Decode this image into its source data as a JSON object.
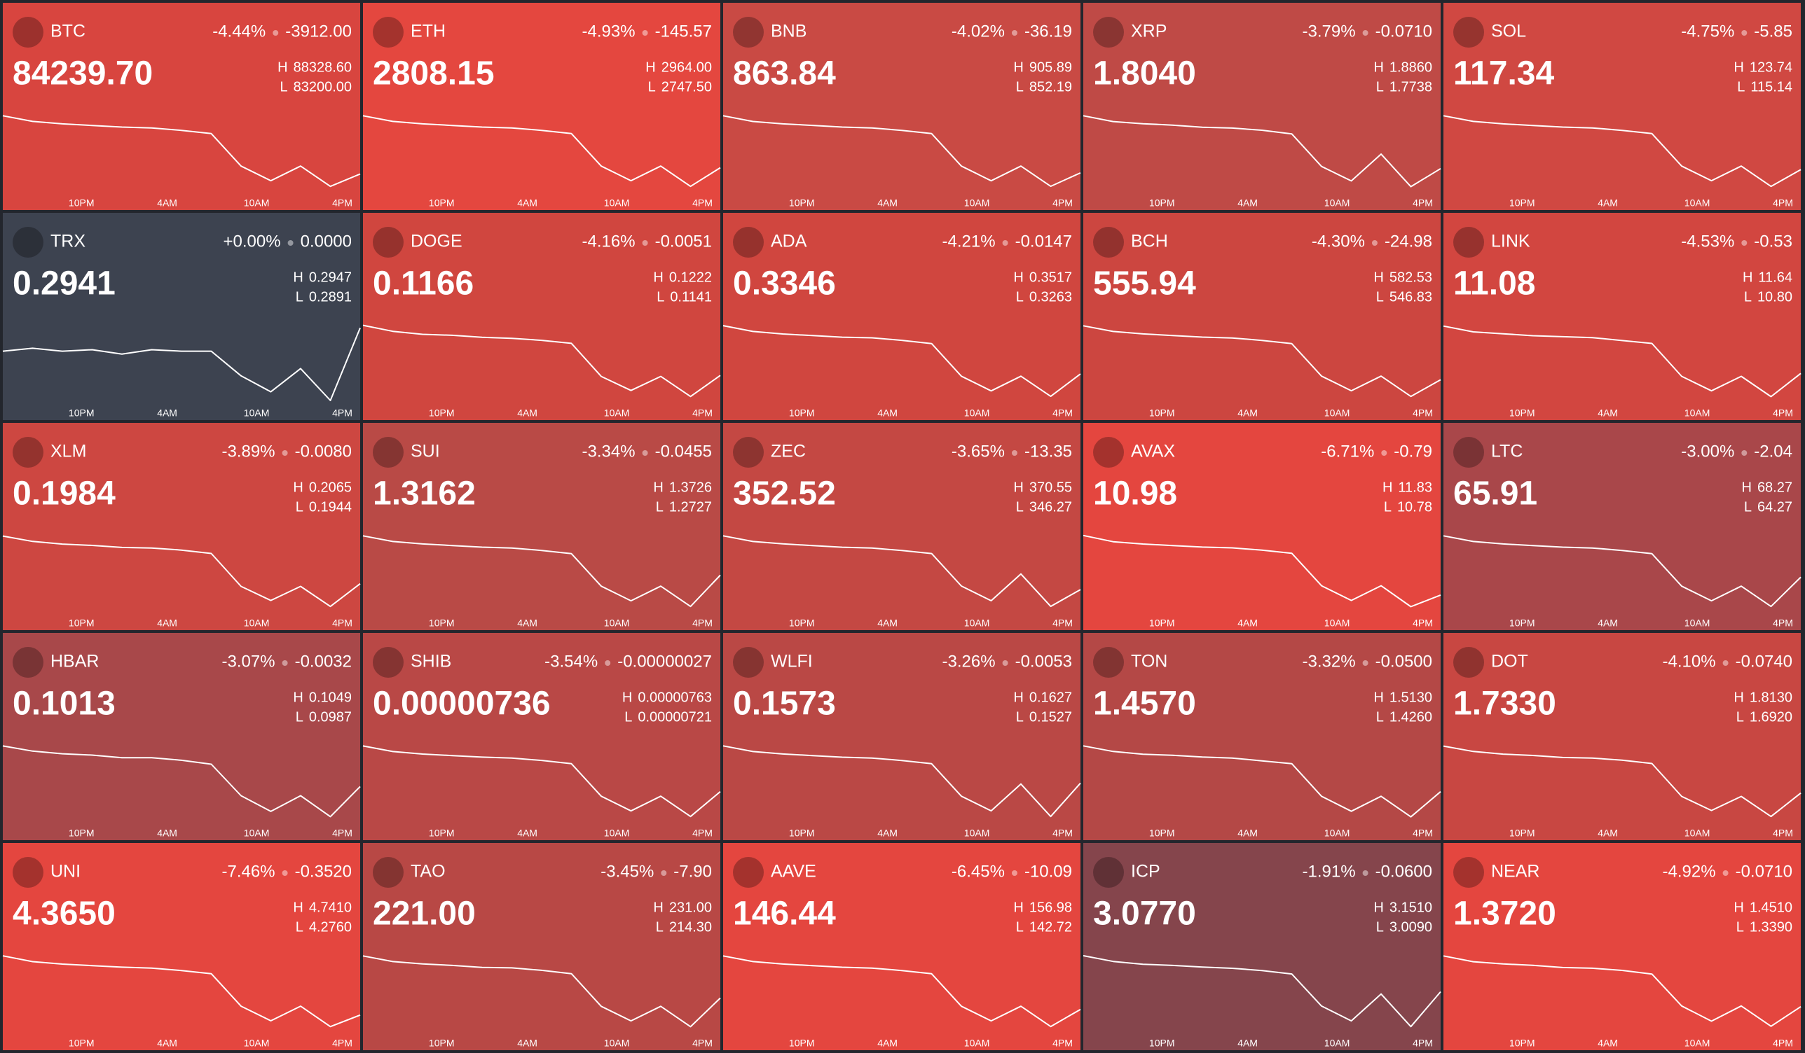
{
  "time_labels": [
    "10PM",
    "4AM",
    "10AM",
    "4PM"
  ],
  "high_prefix": "H",
  "low_prefix": "L",
  "tiles": [
    {
      "symbol": "BTC",
      "change_pct": "-4.44%",
      "change_abs": "-3912.00",
      "price": "84239.70",
      "high": "88328.60",
      "low": "83200.00",
      "color": "#d8453f",
      "sparkline": [
        87918,
        87559,
        87405,
        87303,
        87200,
        87149,
        86995,
        86790,
        84739,
        83815,
        84739,
        83456,
        84240
      ]
    },
    {
      "symbol": "ETH",
      "change_pct": "-4.93%",
      "change_abs": "-145.57",
      "price": "2808.15",
      "high": "2964.00",
      "low": "2747.50",
      "color": "#e4473f",
      "sparkline": [
        2946.7,
        2931.5,
        2925.0,
        2920.7,
        2916.4,
        2914.2,
        2907.7,
        2899.1,
        2812.5,
        2773.5,
        2812.5,
        2758.3,
        2808.2
      ]
    },
    {
      "symbol": "BNB",
      "change_pct": "-4.02%",
      "change_abs": "-36.19",
      "price": "863.84",
      "high": "905.89",
      "low": "852.19",
      "color": "#c94a44",
      "sparkline": [
        901.6,
        897.8,
        896.2,
        895.2,
        894.1,
        893.5,
        891.9,
        889.8,
        868.3,
        858.6,
        868.3,
        854.9,
        863.8
      ]
    },
    {
      "symbol": "XRP",
      "change_pct": "-3.79%",
      "change_abs": "-0.0710",
      "price": "1.8040",
      "high": "1.8860",
      "low": "1.7738",
      "color": "#bf4a46",
      "sparkline": [
        1.877,
        1.869,
        1.866,
        1.864,
        1.861,
        1.86,
        1.857,
        1.852,
        1.807,
        1.787,
        1.824,
        1.779,
        1.804
      ]
    },
    {
      "symbol": "SOL",
      "change_pct": "-4.75%",
      "change_abs": "-5.85",
      "price": "117.34",
      "high": "123.74",
      "low": "115.14",
      "color": "#d04842",
      "sparkline": [
        123.05,
        122.45,
        122.19,
        122.02,
        121.85,
        121.76,
        121.5,
        121.16,
        117.72,
        116.17,
        117.72,
        115.57,
        117.34
      ]
    },
    {
      "symbol": "TRX",
      "change_pct": "+0.00%",
      "change_abs": "0.0000",
      "price": "0.2941",
      "high": "0.2947",
      "low": "0.2891",
      "color": "#3d4350",
      "sparkline": [
        0.2925,
        0.2927,
        0.2925,
        0.2926,
        0.2923,
        0.2926,
        0.2925,
        0.2925,
        0.2908,
        0.2897,
        0.2913,
        0.2891,
        0.2941
      ]
    },
    {
      "symbol": "DOGE",
      "change_pct": "-4.16%",
      "change_abs": "-0.0051",
      "price": "0.1166",
      "high": "0.1222",
      "low": "0.1141",
      "color": "#d0463f",
      "sparkline": [
        0.1216,
        0.121,
        0.1207,
        0.1206,
        0.1204,
        0.1203,
        0.1201,
        0.1198,
        0.1165,
        0.1151,
        0.1165,
        0.1145,
        0.1166
      ]
    },
    {
      "symbol": "ADA",
      "change_pct": "-4.21%",
      "change_abs": "-0.0147",
      "price": "0.3346",
      "high": "0.3517",
      "low": "0.3263",
      "color": "#d0463f",
      "sparkline": [
        0.3497,
        0.3479,
        0.3471,
        0.3466,
        0.3461,
        0.3459,
        0.3451,
        0.3441,
        0.3339,
        0.3293,
        0.3339,
        0.3276,
        0.3346
      ]
    },
    {
      "symbol": "BCH",
      "change_pct": "-4.30%",
      "change_abs": "-24.98",
      "price": "555.94",
      "high": "582.53",
      "low": "546.83",
      "color": "#cc4640",
      "sparkline": [
        579.67,
        577.18,
        576.1,
        575.39,
        574.68,
        574.32,
        573.25,
        571.82,
        557.54,
        551.11,
        557.54,
        548.62,
        555.94
      ]
    },
    {
      "symbol": "LINK",
      "change_pct": "-4.53%",
      "change_abs": "-0.53",
      "price": "11.08",
      "high": "11.64",
      "low": "10.80",
      "color": "#d24640",
      "sparkline": [
        11.57,
        11.51,
        11.49,
        11.47,
        11.46,
        11.45,
        11.42,
        11.39,
        11.05,
        10.9,
        11.05,
        10.84,
        11.08
      ]
    },
    {
      "symbol": "XLM",
      "change_pct": "-3.89%",
      "change_abs": "-0.0080",
      "price": "0.1984",
      "high": "0.2065",
      "low": "0.1944",
      "color": "#cd4741",
      "sparkline": [
        0.2055,
        0.2047,
        0.2043,
        0.2041,
        0.2038,
        0.2037,
        0.2034,
        0.2029,
        0.198,
        0.1959,
        0.198,
        0.195,
        0.1984
      ]
    },
    {
      "symbol": "SUI",
      "change_pct": "-3.34%",
      "change_abs": "-0.0455",
      "price": "1.3162",
      "high": "1.3726",
      "low": "1.2727",
      "color": "#b94a46",
      "sparkline": [
        1.3646,
        1.3576,
        1.3546,
        1.3526,
        1.3506,
        1.3496,
        1.3466,
        1.3426,
        1.3027,
        1.2847,
        1.3027,
        1.2777,
        1.3162
      ]
    },
    {
      "symbol": "ZEC",
      "change_pct": "-3.65%",
      "change_abs": "-13.35",
      "price": "352.52",
      "high": "370.55",
      "low": "346.27",
      "color": "#c44843",
      "sparkline": [
        368.6,
        366.9,
        366.2,
        365.7,
        365.2,
        364.96,
        364.2,
        363.3,
        353.6,
        349.2,
        357.2,
        347.5,
        352.52
      ]
    },
    {
      "symbol": "AVAX",
      "change_pct": "-6.71%",
      "change_abs": "-0.79",
      "price": "10.98",
      "high": "11.83",
      "low": "10.78",
      "color": "#e4463f",
      "sparkline": [
        11.75,
        11.67,
        11.64,
        11.62,
        11.6,
        11.59,
        11.56,
        11.52,
        11.1,
        10.91,
        11.1,
        10.83,
        10.98
      ]
    },
    {
      "symbol": "LTC",
      "change_pct": "-3.00%",
      "change_abs": "-2.04",
      "price": "65.91",
      "high": "68.27",
      "low": "64.27",
      "color": "#a9474a",
      "sparkline": [
        67.95,
        67.67,
        67.55,
        67.47,
        67.39,
        67.35,
        67.23,
        67.07,
        65.47,
        64.75,
        65.47,
        64.47,
        65.91
      ]
    },
    {
      "symbol": "HBAR",
      "change_pct": "-3.07%",
      "change_abs": "-0.0032",
      "price": "0.1013",
      "high": "0.1049",
      "low": "0.0987",
      "color": "#a8484a",
      "sparkline": [
        0.1044,
        0.104,
        0.1038,
        0.1037,
        0.1035,
        0.1035,
        0.1033,
        0.103,
        0.1006,
        0.0994,
        0.1006,
        0.099,
        0.1013
      ]
    },
    {
      "symbol": "SHIB",
      "change_pct": "-3.54%",
      "change_abs": "-0.00000027",
      "price": "0.00000736",
      "high": "0.00000763",
      "low": "0.00000721",
      "color": "#b94846",
      "sparkline": [
        7.596e-06,
        7.567e-06,
        7.554e-06,
        7.546e-06,
        7.538e-06,
        7.533e-06,
        7.521e-06,
        7.504e-06,
        7.336e-06,
        7.26e-06,
        7.336e-06,
        7.231e-06,
        7.36e-06
      ]
    },
    {
      "symbol": "WLFI",
      "change_pct": "-3.26%",
      "change_abs": "-0.0053",
      "price": "0.1573",
      "high": "0.1627",
      "low": "0.1527",
      "color": "#ba4845",
      "sparkline": [
        0.1619,
        0.1612,
        0.1609,
        0.1607,
        0.1605,
        0.1604,
        0.1601,
        0.1597,
        0.1557,
        0.1539,
        0.1572,
        0.1532,
        0.1573
      ]
    },
    {
      "symbol": "TON",
      "change_pct": "-3.32%",
      "change_abs": "-0.0500",
      "price": "1.4570",
      "high": "1.5130",
      "low": "1.4260",
      "color": "#b44846",
      "sparkline": [
        1.506,
        1.5,
        1.497,
        1.496,
        1.494,
        1.493,
        1.49,
        1.487,
        1.452,
        1.436,
        1.452,
        1.43,
        1.457
      ]
    },
    {
      "symbol": "DOT",
      "change_pct": "-4.10%",
      "change_abs": "-0.0740",
      "price": "1.7330",
      "high": "1.8130",
      "low": "1.6920",
      "color": "#c84742",
      "sparkline": [
        1.803,
        1.795,
        1.791,
        1.789,
        1.786,
        1.785,
        1.782,
        1.777,
        1.728,
        1.707,
        1.728,
        1.698,
        1.733
      ]
    },
    {
      "symbol": "UNI",
      "change_pct": "-7.46%",
      "change_abs": "-0.3520",
      "price": "4.3650",
      "high": "4.7410",
      "low": "4.2760",
      "color": "#e4463f",
      "sparkline": [
        4.704,
        4.671,
        4.657,
        4.648,
        4.639,
        4.634,
        4.62,
        4.602,
        4.416,
        4.332,
        4.416,
        4.299,
        4.365
      ]
    },
    {
      "symbol": "TAO",
      "change_pct": "-3.45%",
      "change_abs": "-7.90",
      "price": "221.00",
      "high": "231.00",
      "low": "214.30",
      "color": "#b84845",
      "sparkline": [
        229.66,
        228.5,
        228.0,
        227.7,
        227.3,
        227.2,
        226.7,
        226.0,
        219.3,
        216.3,
        219.3,
        215.1,
        221.0
      ]
    },
    {
      "symbol": "AAVE",
      "change_pct": "-6.45%",
      "change_abs": "-10.09",
      "price": "146.44",
      "high": "156.98",
      "low": "142.72",
      "color": "#e4463f",
      "sparkline": [
        155.84,
        154.84,
        154.41,
        154.13,
        153.84,
        153.7,
        153.27,
        152.7,
        147.0,
        144.43,
        147.0,
        143.43,
        146.44
      ]
    },
    {
      "symbol": "ICP",
      "change_pct": "-1.91%",
      "change_abs": "-0.0600",
      "price": "3.0770",
      "high": "3.1510",
      "low": "3.0090",
      "color": "#85454c",
      "sparkline": [
        3.14,
        3.13,
        3.125,
        3.123,
        3.12,
        3.118,
        3.114,
        3.108,
        3.052,
        3.026,
        3.073,
        3.016,
        3.077
      ]
    },
    {
      "symbol": "NEAR",
      "change_pct": "-4.92%",
      "change_abs": "-0.0710",
      "price": "1.3720",
      "high": "1.4510",
      "low": "1.3390",
      "color": "#e4463f",
      "sparkline": [
        1.442,
        1.434,
        1.431,
        1.429,
        1.426,
        1.425,
        1.422,
        1.417,
        1.373,
        1.352,
        1.373,
        1.345,
        1.372
      ]
    }
  ]
}
